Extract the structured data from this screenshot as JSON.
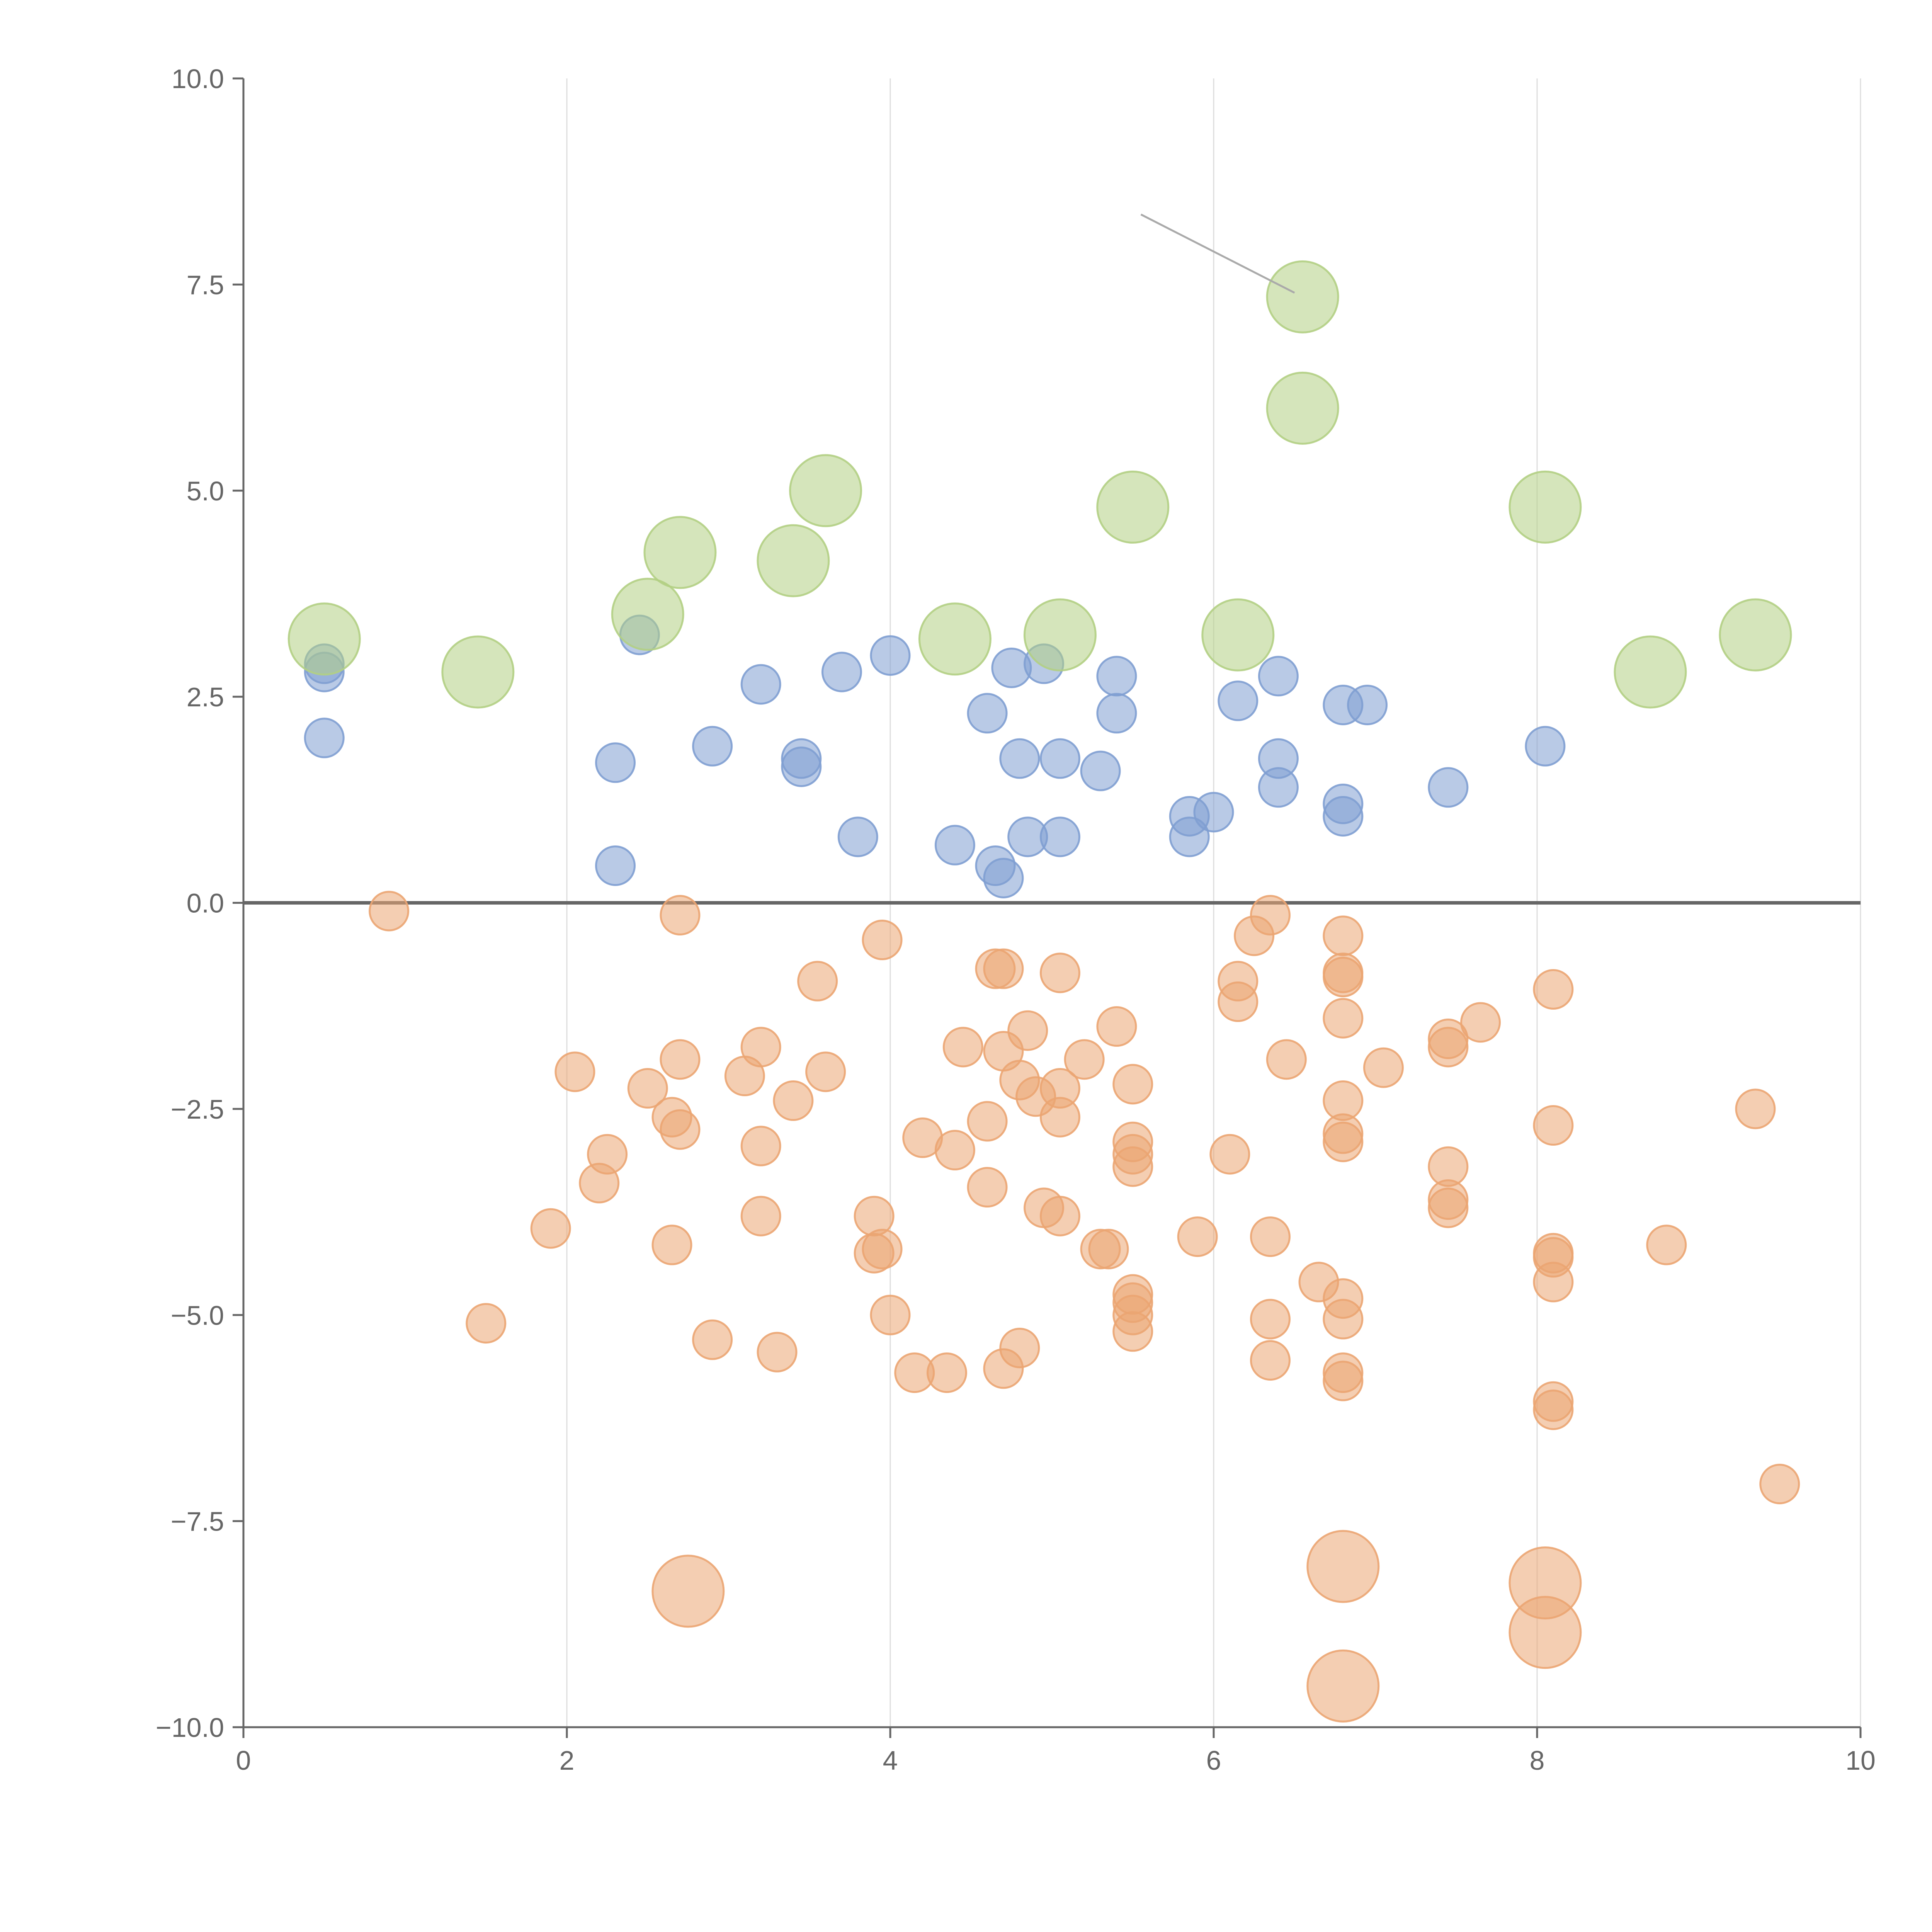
{
  "chart_data": {
    "type": "scatter",
    "title": "",
    "xlabel": "",
    "ylabel": "",
    "xlim": [
      0,
      10
    ],
    "ylim": [
      -10,
      10
    ],
    "x_ticks": [
      "0",
      "2",
      "4",
      "6",
      "8",
      "10"
    ],
    "y_ticks": [
      "10.0",
      "7.5",
      "5.0",
      "2.5",
      "0.0",
      "−2.5",
      "−5.0",
      "−7.5",
      "−10.0"
    ],
    "grid": "vertical",
    "zero_line": true,
    "legend": "none",
    "colors": {
      "blue": "#7f9fd1",
      "orange": "#eba572",
      "green": "#b3cf84",
      "axis": "#666666",
      "grid": "#dddddd"
    },
    "series": [
      {
        "color": "blue",
        "size": 1,
        "points": [
          [
            0.5,
            2.9
          ],
          [
            0.5,
            2.8
          ],
          [
            0.5,
            2.0
          ],
          [
            2.3,
            1.7
          ],
          [
            2.3,
            0.45
          ],
          [
            2.45,
            3.25
          ],
          [
            2.9,
            1.9
          ],
          [
            3.2,
            2.65
          ],
          [
            3.45,
            1.75
          ],
          [
            3.45,
            1.65
          ],
          [
            3.7,
            2.8
          ],
          [
            3.8,
            0.8
          ],
          [
            4.0,
            3.0
          ],
          [
            4.4,
            0.7
          ],
          [
            4.6,
            2.3
          ],
          [
            4.65,
            0.45
          ],
          [
            4.7,
            0.3
          ],
          [
            4.75,
            2.85
          ],
          [
            4.8,
            1.75
          ],
          [
            4.85,
            0.8
          ],
          [
            4.95,
            2.9
          ],
          [
            5.05,
            1.75
          ],
          [
            5.05,
            0.8
          ],
          [
            5.3,
            1.6
          ],
          [
            5.4,
            2.75
          ],
          [
            5.4,
            2.3
          ],
          [
            5.85,
            1.05
          ],
          [
            5.85,
            0.8
          ],
          [
            6.0,
            1.1
          ],
          [
            6.15,
            2.45
          ],
          [
            6.4,
            2.75
          ],
          [
            6.4,
            1.75
          ],
          [
            6.4,
            1.4
          ],
          [
            6.8,
            2.4
          ],
          [
            6.8,
            1.2
          ],
          [
            6.8,
            1.05
          ],
          [
            6.95,
            2.4
          ],
          [
            7.45,
            1.4
          ],
          [
            8.05,
            1.9
          ]
        ]
      },
      {
        "color": "orange",
        "size": 1,
        "points": [
          [
            0.9,
            -0.1
          ],
          [
            1.5,
            -5.1
          ],
          [
            1.9,
            -3.95
          ],
          [
            2.05,
            -2.05
          ],
          [
            2.2,
            -3.4
          ],
          [
            2.25,
            -3.05
          ],
          [
            2.5,
            -2.25
          ],
          [
            2.7,
            -0.15
          ],
          [
            2.7,
            -1.9
          ],
          [
            2.65,
            -2.6
          ],
          [
            2.7,
            -2.75
          ],
          [
            2.65,
            -4.15
          ],
          [
            2.9,
            -5.3
          ],
          [
            3.1,
            -2.1
          ],
          [
            3.2,
            -1.75
          ],
          [
            3.2,
            -2.95
          ],
          [
            3.2,
            -3.8
          ],
          [
            3.3,
            -5.45
          ],
          [
            3.4,
            -2.4
          ],
          [
            3.55,
            -0.95
          ],
          [
            3.6,
            -2.05
          ],
          [
            3.9,
            -3.8
          ],
          [
            3.95,
            -0.45
          ],
          [
            3.9,
            -4.25
          ],
          [
            3.95,
            -4.2
          ],
          [
            4.0,
            -5.0
          ],
          [
            4.15,
            -5.7
          ],
          [
            4.2,
            -2.85
          ],
          [
            4.35,
            -5.7
          ],
          [
            4.4,
            -3.0
          ],
          [
            4.45,
            -1.75
          ],
          [
            4.6,
            -2.65
          ],
          [
            4.6,
            -3.45
          ],
          [
            4.65,
            -0.8
          ],
          [
            4.7,
            -0.8
          ],
          [
            4.7,
            -1.8
          ],
          [
            4.7,
            -5.65
          ],
          [
            4.8,
            -2.15
          ],
          [
            4.85,
            -1.55
          ],
          [
            4.8,
            -5.4
          ],
          [
            4.9,
            -2.35
          ],
          [
            4.95,
            -3.7
          ],
          [
            5.05,
            -0.85
          ],
          [
            5.05,
            -2.25
          ],
          [
            5.05,
            -2.6
          ],
          [
            5.05,
            -3.8
          ],
          [
            5.2,
            -1.9
          ],
          [
            5.3,
            -4.2
          ],
          [
            5.35,
            -4.2
          ],
          [
            5.4,
            -1.5
          ],
          [
            5.5,
            -2.2
          ],
          [
            5.5,
            -2.9
          ],
          [
            5.5,
            -3.05
          ],
          [
            5.5,
            -3.2
          ],
          [
            5.5,
            -4.75
          ],
          [
            5.5,
            -4.85
          ],
          [
            5.5,
            -5.0
          ],
          [
            5.5,
            -5.2
          ],
          [
            5.9,
            -4.05
          ],
          [
            6.1,
            -3.05
          ],
          [
            6.15,
            -0.95
          ],
          [
            6.15,
            -1.2
          ],
          [
            6.25,
            -0.4
          ],
          [
            6.35,
            -0.15
          ],
          [
            6.35,
            -4.05
          ],
          [
            6.35,
            -5.05
          ],
          [
            6.35,
            -5.55
          ],
          [
            6.45,
            -1.9
          ],
          [
            6.65,
            -4.6
          ],
          [
            6.8,
            -0.4
          ],
          [
            6.8,
            -0.85
          ],
          [
            6.8,
            -0.9
          ],
          [
            6.8,
            -1.4
          ],
          [
            6.8,
            -2.4
          ],
          [
            6.8,
            -2.8
          ],
          [
            6.8,
            -2.9
          ],
          [
            6.8,
            -4.8
          ],
          [
            6.8,
            -5.05
          ],
          [
            6.8,
            -5.7
          ],
          [
            6.8,
            -5.8
          ],
          [
            7.05,
            -2.0
          ],
          [
            7.45,
            -1.65
          ],
          [
            7.45,
            -1.75
          ],
          [
            7.45,
            -3.2
          ],
          [
            7.45,
            -3.6
          ],
          [
            7.45,
            -3.7
          ],
          [
            7.65,
            -1.45
          ],
          [
            8.1,
            -1.05
          ],
          [
            8.1,
            -2.7
          ],
          [
            8.1,
            -4.25
          ],
          [
            8.1,
            -4.3
          ],
          [
            8.1,
            -4.6
          ],
          [
            8.1,
            -6.05
          ],
          [
            8.1,
            -6.15
          ],
          [
            8.8,
            -4.15
          ],
          [
            9.35,
            -2.5
          ],
          [
            9.5,
            -7.05
          ]
        ]
      },
      {
        "color": "orange",
        "size": 2,
        "points": [
          [
            2.75,
            -8.35
          ],
          [
            6.8,
            -8.05
          ],
          [
            8.05,
            -8.25
          ],
          [
            8.05,
            -8.85
          ],
          [
            6.8,
            -9.5
          ]
        ]
      },
      {
        "color": "green",
        "size": 2,
        "points": [
          [
            0.5,
            3.2
          ],
          [
            1.45,
            2.8
          ],
          [
            2.5,
            3.5
          ],
          [
            2.7,
            4.25
          ],
          [
            3.4,
            4.15
          ],
          [
            3.6,
            5.0
          ],
          [
            4.4,
            3.2
          ],
          [
            5.05,
            3.25
          ],
          [
            5.5,
            4.8
          ],
          [
            6.15,
            3.25
          ],
          [
            6.55,
            7.35
          ],
          [
            6.55,
            6.0
          ],
          [
            8.05,
            4.8
          ],
          [
            8.7,
            2.8
          ],
          [
            9.35,
            3.25
          ]
        ]
      }
    ],
    "annotation_line": {
      "from": [
        5.55,
        8.35
      ],
      "to": [
        6.5,
        7.4
      ]
    }
  }
}
